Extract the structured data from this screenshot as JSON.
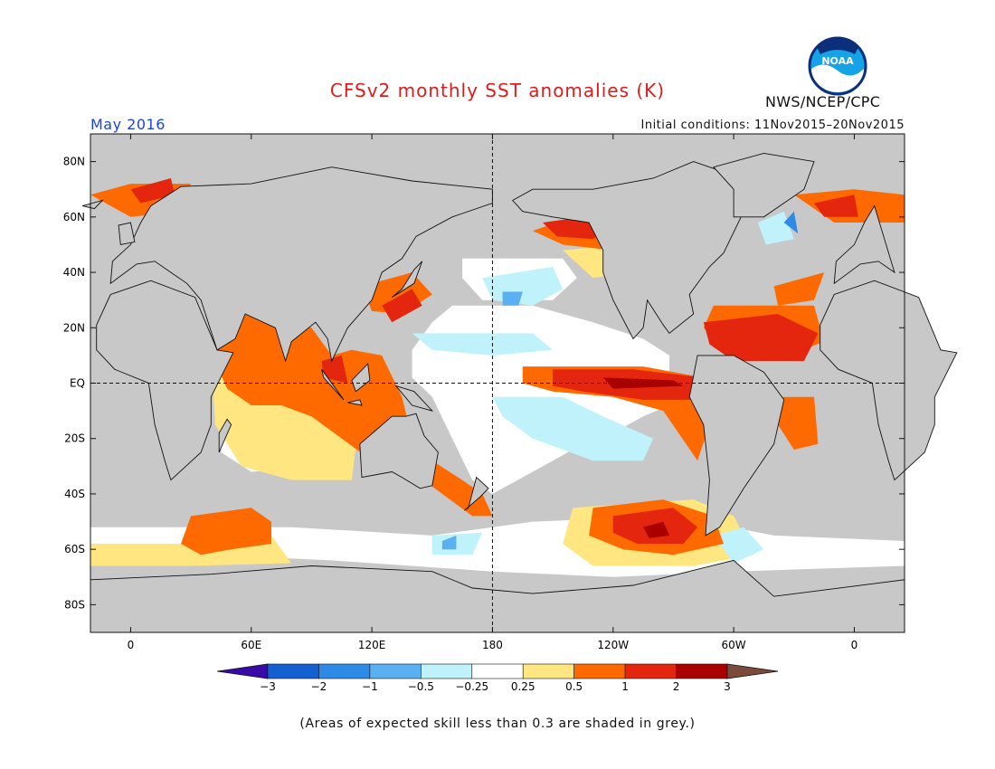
{
  "header": {
    "title": "CFSv2 monthly SST anomalies (K)",
    "month": "May 2016",
    "initial_conditions": "Initial conditions: 11Nov2015–20Nov2015",
    "agency": "NWS/NCEP/CPC",
    "logo_text": "NOAA"
  },
  "colors": {
    "title": "#dd1c1c",
    "month": "#1c44dd",
    "land_outline": "#111111",
    "skill_mask_grey": "#c8c8c8",
    "neg_0_25": "#ffffff",
    "pos_0_25": "#ffffff",
    "pos_0_5": "#ffe680",
    "pos_1": "#ff6a00",
    "pos_2": "#e3260d",
    "pos_3": "#aa0000",
    "pos_gt3": "#7c4a3a",
    "neg_0_5": "#bff2fa",
    "neg_1": "#5ab0f0",
    "neg_2": "#2d8ae6",
    "neg_3": "#1560d0",
    "neg_lt3": "#3a0aa8"
  },
  "map": {
    "lat_labels": [
      "80N",
      "60N",
      "40N",
      "20N",
      "EQ",
      "20S",
      "40S",
      "60S",
      "80S"
    ],
    "lon_labels": [
      "0",
      "60E",
      "120E",
      "180",
      "120W",
      "60W",
      "0"
    ],
    "lat_values": [
      80,
      60,
      40,
      20,
      0,
      -20,
      -40,
      -60,
      -80
    ],
    "lon_values": [
      0,
      60,
      120,
      180,
      240,
      300,
      360
    ],
    "lon_range": [
      -20,
      385
    ],
    "lat_range": [
      -90,
      90
    ],
    "reference_lines": [
      "equator",
      "dateline"
    ]
  },
  "colorbar": {
    "tick_labels": [
      "−3",
      "−2",
      "−1",
      "−0.5",
      "−0.25",
      "0.25",
      "0.5",
      "1",
      "2",
      "3"
    ],
    "colors": [
      "#3a0aa8",
      "#1560d0",
      "#2d8ae6",
      "#5ab0f0",
      "#bff2fa",
      "#ffffff",
      "#ffe680",
      "#ff6a00",
      "#e3260d",
      "#aa0000",
      "#7c4a3a"
    ]
  },
  "footnote": "(Areas of expected skill less than 0.3 are shaded in grey.)"
}
